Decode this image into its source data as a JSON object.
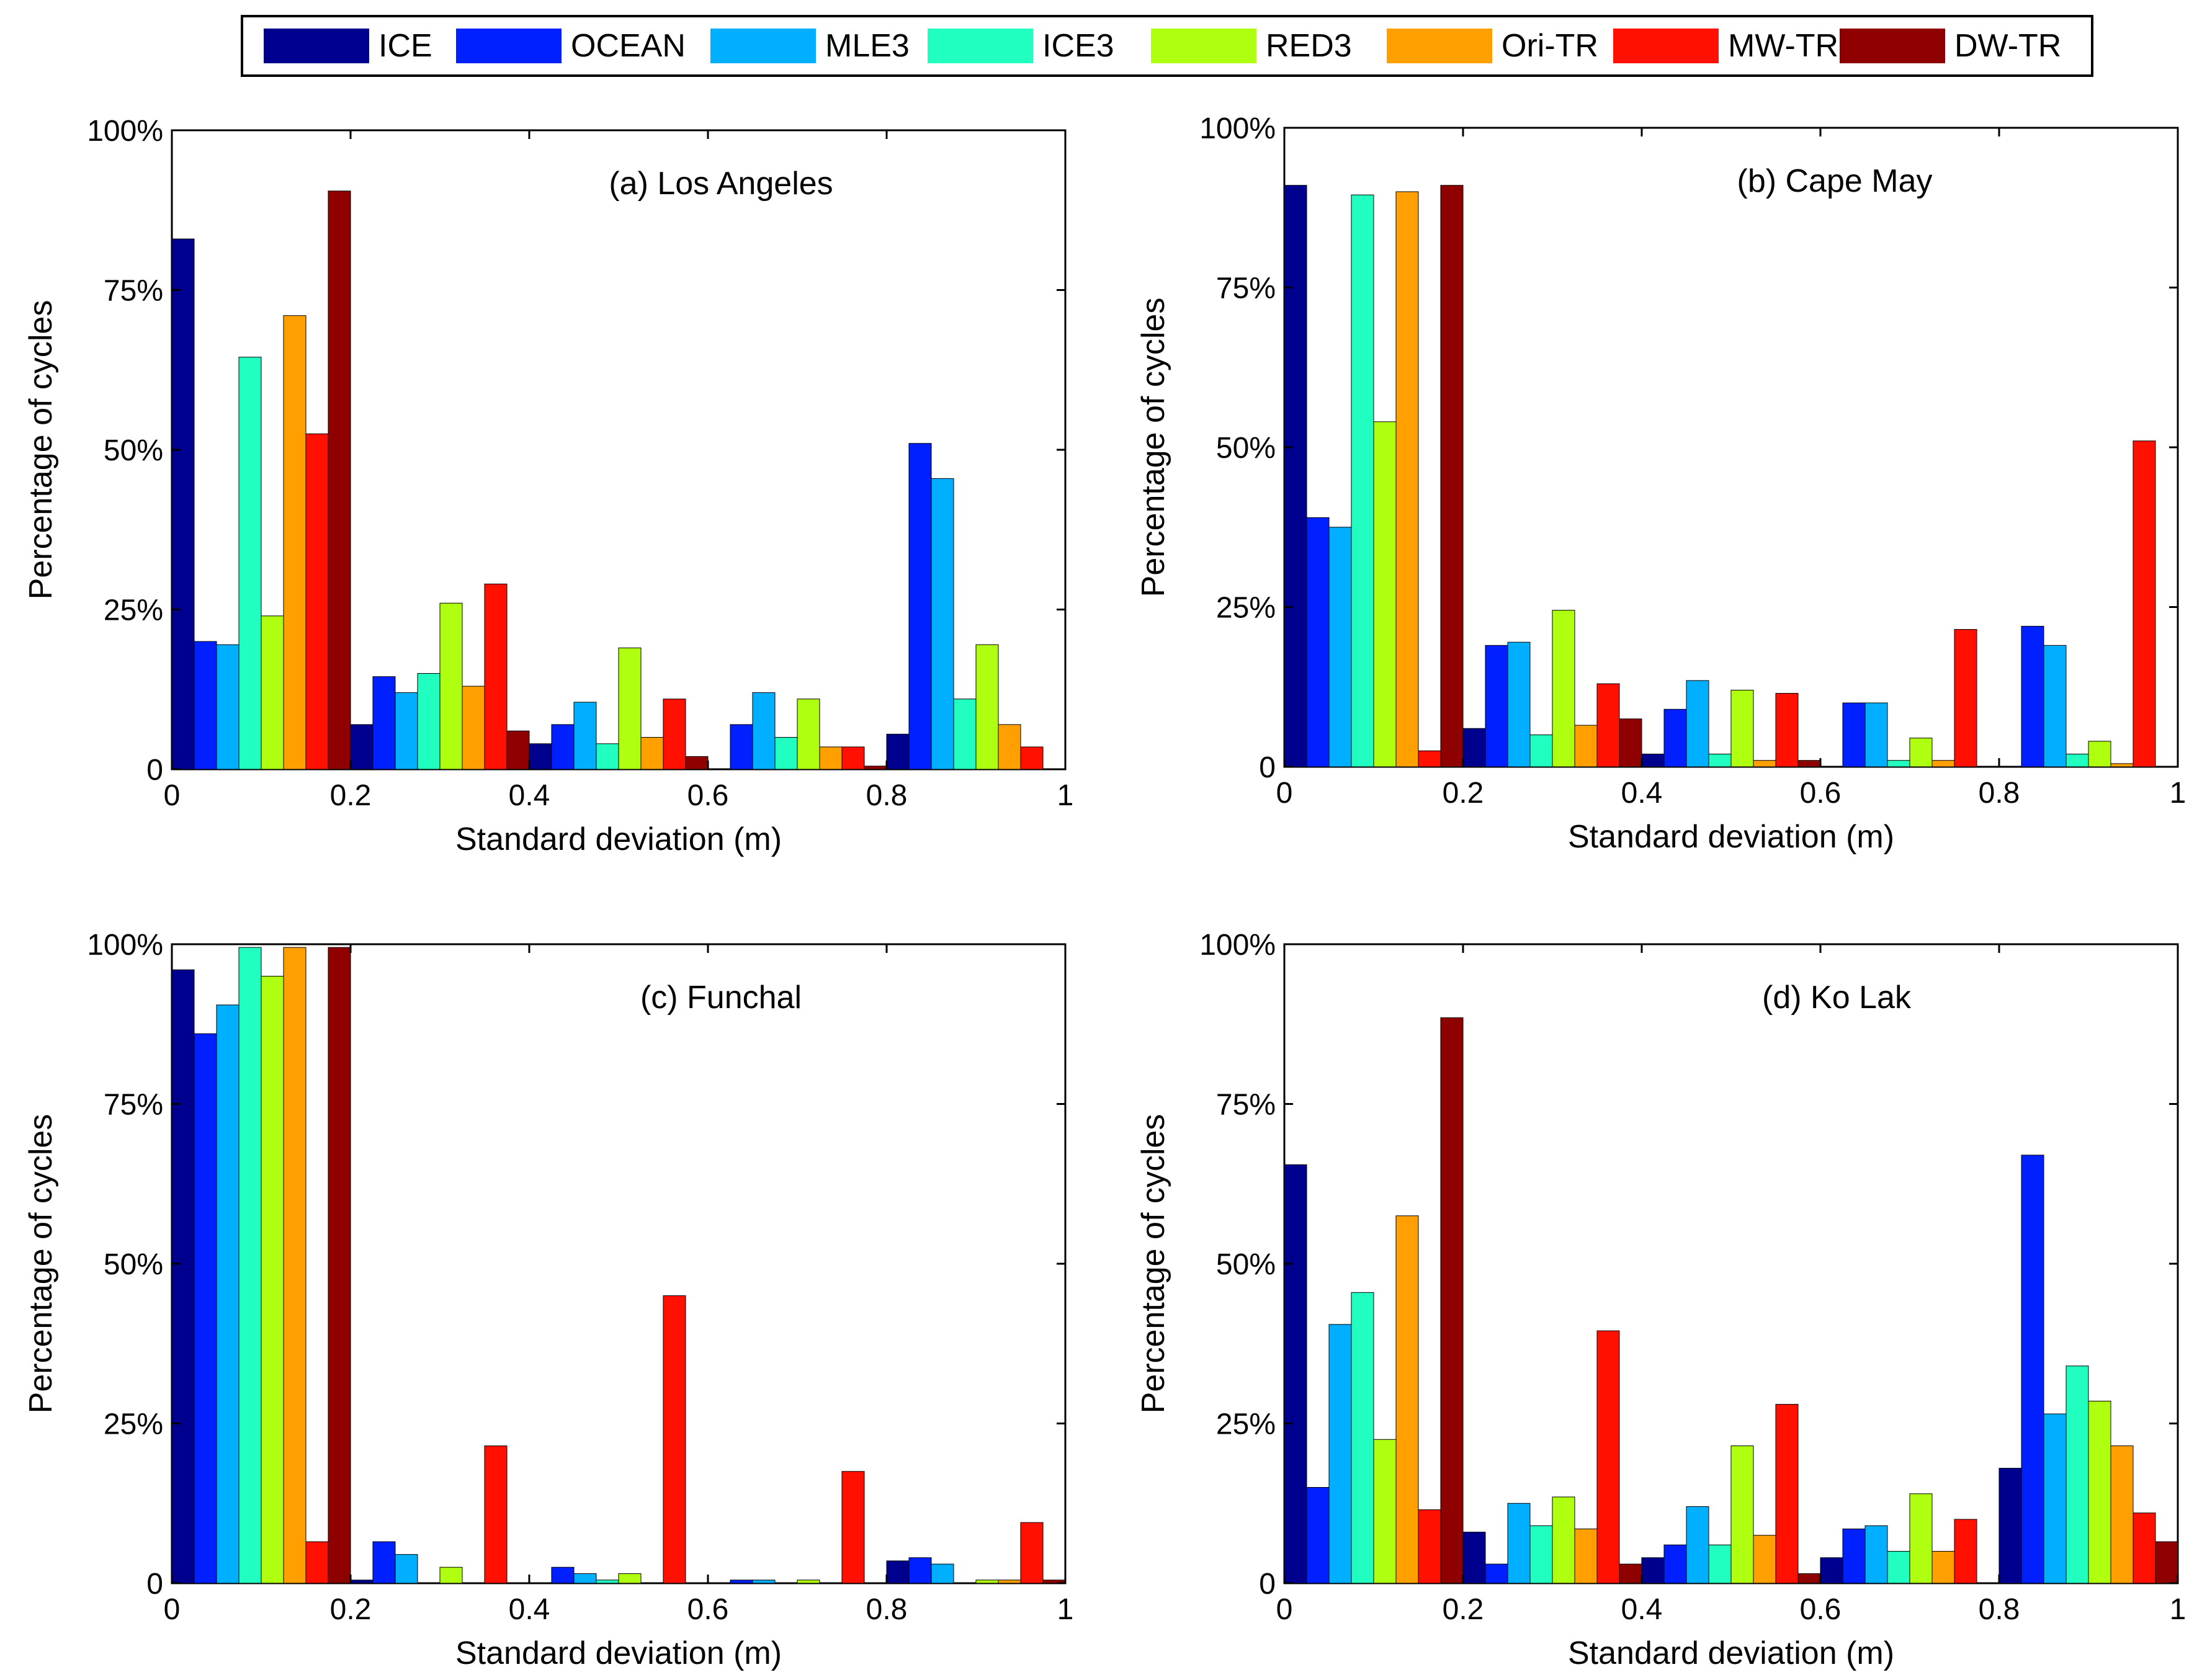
{
  "legend": {
    "entries": [
      {
        "label": "ICE",
        "color": "#00008F"
      },
      {
        "label": "OCEAN",
        "color": "#0020FF"
      },
      {
        "label": "MLE3",
        "color": "#00AFFF"
      },
      {
        "label": "ICE3",
        "color": "#20FFBF"
      },
      {
        "label": "RED3",
        "color": "#AFFF10"
      },
      {
        "label": "Ori-TR",
        "color": "#FF9F00"
      },
      {
        "label": "MW-TR",
        "color": "#FF1000"
      },
      {
        "label": "DW-TR",
        "color": "#8F0000"
      }
    ]
  },
  "chart_data": [
    {
      "type": "bar",
      "title": "(a) Los Angeles",
      "xlabel": "Standard deviation (m)",
      "ylabel": "Percentage of cycles",
      "xlim": [
        0,
        1
      ],
      "ylim": [
        0,
        100
      ],
      "xticks": [
        "0",
        "0.2",
        "0.4",
        "0.6",
        "0.8",
        "1"
      ],
      "yticks": [
        "0",
        "25%",
        "50%",
        "75%",
        "100%"
      ],
      "categories": [
        0.1,
        0.3,
        0.5,
        0.7,
        0.9
      ],
      "series": [
        {
          "name": "ICE",
          "values": [
            83,
            7,
            4,
            0,
            5.5
          ]
        },
        {
          "name": "OCEAN",
          "values": [
            20,
            14.5,
            7,
            7,
            51
          ]
        },
        {
          "name": "MLE3",
          "values": [
            19.5,
            12,
            10.5,
            12,
            45.5
          ]
        },
        {
          "name": "ICE3",
          "values": [
            64.5,
            15,
            4,
            5,
            11
          ]
        },
        {
          "name": "RED3",
          "values": [
            24,
            26,
            19,
            11,
            19.5
          ]
        },
        {
          "name": "Ori-TR",
          "values": [
            71,
            13,
            5,
            3.5,
            7
          ]
        },
        {
          "name": "MW-TR",
          "values": [
            52.5,
            29,
            11,
            3.5,
            3.5
          ]
        },
        {
          "name": "DW-TR",
          "values": [
            90.5,
            6,
            2,
            0.5,
            0
          ]
        }
      ]
    },
    {
      "type": "bar",
      "title": "(b) Cape May",
      "xlabel": "Standard deviation (m)",
      "ylabel": "Percentage of cycles",
      "xlim": [
        0,
        1
      ],
      "ylim": [
        0,
        100
      ],
      "xticks": [
        "0",
        "0.2",
        "0.4",
        "0.6",
        "0.8",
        "1"
      ],
      "yticks": [
        "0",
        "25%",
        "50%",
        "75%",
        "100%"
      ],
      "categories": [
        0.1,
        0.3,
        0.5,
        0.7,
        0.9
      ],
      "series": [
        {
          "name": "ICE",
          "values": [
            91,
            6,
            2,
            0,
            0
          ]
        },
        {
          "name": "OCEAN",
          "values": [
            39,
            19,
            9,
            10,
            22
          ]
        },
        {
          "name": "MLE3",
          "values": [
            37.5,
            19.5,
            13.5,
            10,
            19
          ]
        },
        {
          "name": "ICE3",
          "values": [
            89.5,
            5,
            2,
            1,
            2
          ]
        },
        {
          "name": "RED3",
          "values": [
            54,
            24.5,
            12,
            4.5,
            4
          ]
        },
        {
          "name": "Ori-TR",
          "values": [
            90,
            6.5,
            1,
            1,
            0.5
          ]
        },
        {
          "name": "MW-TR",
          "values": [
            2.5,
            13,
            11.5,
            21.5,
            51
          ]
        },
        {
          "name": "DW-TR",
          "values": [
            91,
            7.5,
            1,
            0,
            0
          ]
        }
      ]
    },
    {
      "type": "bar",
      "title": "(c) Funchal",
      "xlabel": "Standard deviation (m)",
      "ylabel": "Percentage of cycles",
      "xlim": [
        0,
        1
      ],
      "ylim": [
        0,
        100
      ],
      "xticks": [
        "0",
        "0.2",
        "0.4",
        "0.6",
        "0.8",
        "1"
      ],
      "yticks": [
        "0",
        "25%",
        "50%",
        "75%",
        "100%"
      ],
      "categories": [
        0.1,
        0.3,
        0.5,
        0.7,
        0.9
      ],
      "series": [
        {
          "name": "ICE",
          "values": [
            96,
            0.5,
            0,
            0,
            3.5
          ]
        },
        {
          "name": "OCEAN",
          "values": [
            86,
            6.5,
            2.5,
            0.5,
            4
          ]
        },
        {
          "name": "MLE3",
          "values": [
            90.5,
            4.5,
            1.5,
            0.5,
            3
          ]
        },
        {
          "name": "ICE3",
          "values": [
            99.5,
            0,
            0.5,
            0,
            0
          ]
        },
        {
          "name": "RED3",
          "values": [
            95,
            2.5,
            1.5,
            0.5,
            0.5
          ]
        },
        {
          "name": "Ori-TR",
          "values": [
            99.5,
            0,
            0,
            0,
            0.5
          ]
        },
        {
          "name": "MW-TR",
          "values": [
            6.5,
            21.5,
            45,
            17.5,
            9.5
          ]
        },
        {
          "name": "DW-TR",
          "values": [
            99.5,
            0,
            0,
            0,
            0.5
          ]
        }
      ]
    },
    {
      "type": "bar",
      "title": "(d) Ko Lak",
      "xlabel": "Standard deviation (m)",
      "ylabel": "Percentage of cycles",
      "xlim": [
        0,
        1
      ],
      "ylim": [
        0,
        100
      ],
      "xticks": [
        "0",
        "0.2",
        "0.4",
        "0.6",
        "0.8",
        "1"
      ],
      "yticks": [
        "0",
        "25%",
        "50%",
        "75%",
        "100%"
      ],
      "categories": [
        0.1,
        0.3,
        0.5,
        0.7,
        0.9
      ],
      "series": [
        {
          "name": "ICE",
          "values": [
            65.5,
            8,
            4,
            4,
            18
          ]
        },
        {
          "name": "OCEAN",
          "values": [
            15,
            3,
            6,
            8.5,
            67
          ]
        },
        {
          "name": "MLE3",
          "values": [
            40.5,
            12.5,
            12,
            9,
            26.5
          ]
        },
        {
          "name": "ICE3",
          "values": [
            45.5,
            9,
            6,
            5,
            34
          ]
        },
        {
          "name": "RED3",
          "values": [
            22.5,
            13.5,
            21.5,
            14,
            28.5
          ]
        },
        {
          "name": "Ori-TR",
          "values": [
            57.5,
            8.5,
            7.5,
            5,
            21.5
          ]
        },
        {
          "name": "MW-TR",
          "values": [
            11.5,
            39.5,
            28,
            10,
            11
          ]
        },
        {
          "name": "DW-TR",
          "values": [
            88.5,
            3,
            1.5,
            0,
            6.5
          ]
        }
      ]
    }
  ]
}
